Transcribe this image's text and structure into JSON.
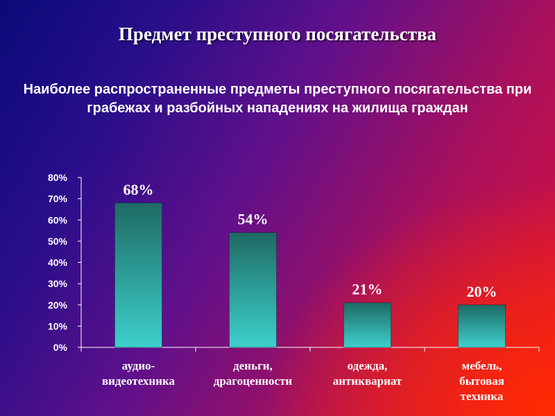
{
  "slide": {
    "title": "Предмет преступного посягательства"
  },
  "chart_data": {
    "type": "bar",
    "title": "Наиболее распространенные предметы преступного посягательства при грабежах и разбойных нападениях на жилища граждан",
    "categories": [
      [
        "аудио-",
        "видеотехника"
      ],
      [
        "деньги,",
        "драгоценности"
      ],
      [
        "одежда,",
        "антиквариат"
      ],
      [
        "мебель,",
        "бытовая",
        "техника"
      ]
    ],
    "values": [
      68,
      54,
      21,
      20
    ],
    "data_labels": [
      "68%",
      "54%",
      "21%",
      "20%"
    ],
    "yticks": [
      "0%",
      "10%",
      "20%",
      "30%",
      "40%",
      "50%",
      "60%",
      "70%",
      "80%"
    ],
    "ylim": [
      0,
      80
    ],
    "grid": false,
    "legend": "none",
    "bar_color_top": "#1e6a64",
    "bar_color_bottom": "#3ed0cc",
    "text_color": "#ffffff"
  }
}
